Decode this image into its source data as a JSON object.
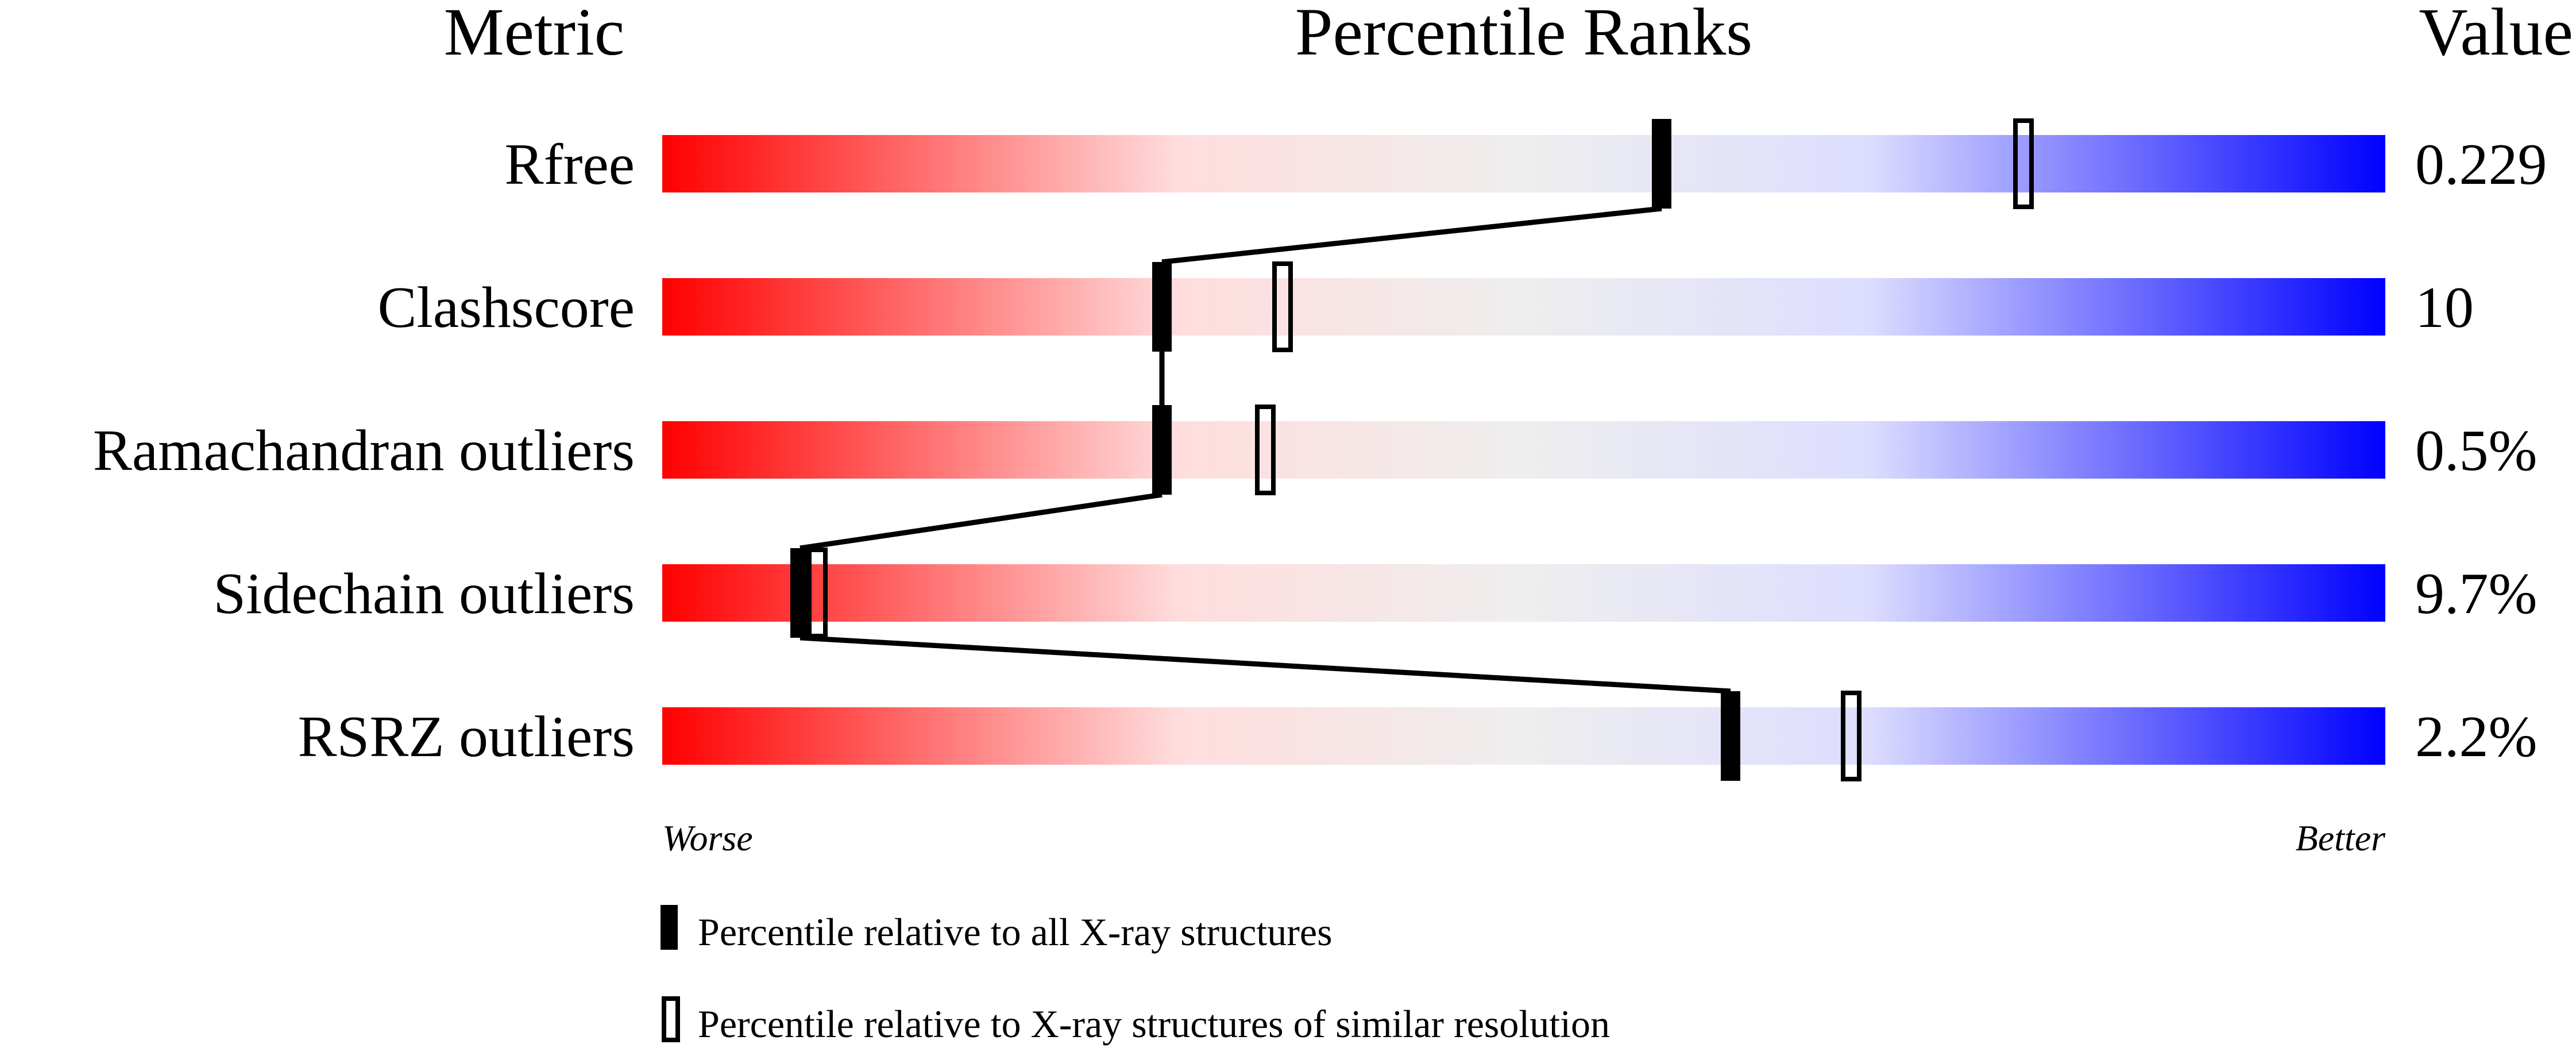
{
  "chart_data": {
    "type": "percentile-slider",
    "headers": {
      "metric": "Metric",
      "ranks": "Percentile Ranks",
      "value": "Value"
    },
    "axis_range": [
      0,
      100
    ],
    "metrics": [
      {
        "name": "Rfree",
        "value": "0.229",
        "percentile_all": 58,
        "percentile_similar": 79
      },
      {
        "name": "Clashscore",
        "value": "10",
        "percentile_all": 29,
        "percentile_similar": 36
      },
      {
        "name": "Ramachandran outliers",
        "value": "0.5%",
        "percentile_all": 29,
        "percentile_similar": 35
      },
      {
        "name": "Sidechain outliers",
        "value": "9.7%",
        "percentile_all": 8,
        "percentile_similar": 9
      },
      {
        "name": "RSRZ outliers",
        "value": "2.2%",
        "percentile_all": 62,
        "percentile_similar": 69
      }
    ],
    "scale_labels": {
      "low": "Worse",
      "high": "Better"
    },
    "legend": {
      "filled": "Percentile relative to all X-ray structures",
      "open": "Percentile relative to X-ray structures of similar resolution"
    },
    "colors": {
      "worse": "#ff0000",
      "mid_low": "#ffdddd",
      "mid": "#eeeeee",
      "mid_high": "#ddddff",
      "better": "#0000ff"
    }
  }
}
